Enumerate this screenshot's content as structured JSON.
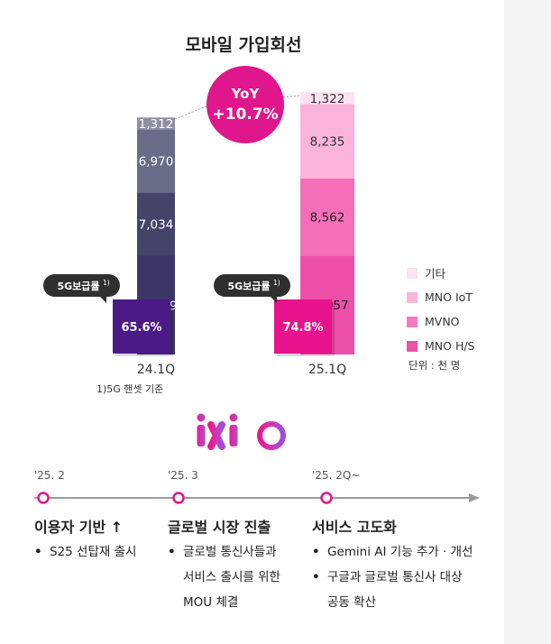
{
  "chart_data": {
    "type": "bar",
    "stacked": true,
    "title": "모바일 가입회선",
    "categories": [
      "24.1Q",
      "25.1Q"
    ],
    "series": [
      {
        "name": "MNO H/S",
        "values": [
          null,
          null
        ]
      },
      {
        "name": "MVNO",
        "values": [
          10949,
          10957
        ]
      },
      {
        "name": "MNO IoT",
        "values": [
          7034,
          8562
        ]
      },
      {
        "name": "기타",
        "values": [
          6970,
          8235
        ]
      },
      {
        "name": "",
        "values": [
          1312,
          1322
        ]
      }
    ],
    "segment_labels": [
      [
        "10,949",
        "7,034",
        "6,970",
        "1,312"
      ],
      [
        "10,957",
        "8,562",
        "8,235",
        "1,322"
      ]
    ],
    "5g_penetration": {
      "label": "5G보급률",
      "superscript": "1)",
      "values": [
        "65.6%",
        "74.8%"
      ]
    },
    "yoy": {
      "label": "YoY",
      "value": "+10.7%"
    },
    "legend_position": "right",
    "footnote": "1)5G 핸셋 기준",
    "unit": "단위 : 천 명",
    "colors": {
      "left": [
        "#3d3566",
        "#44446a",
        "#686c87",
        "#8d8fa3"
      ],
      "right": [
        "#ee4fa9",
        "#f46fb8",
        "#fab4d9",
        "#fde3f1"
      ],
      "pen_left": "#4a1a86",
      "pen_right": "#e8128c",
      "yoy": "#e0168c"
    },
    "legend": [
      {
        "label": "기타",
        "color": "#fbe3f1"
      },
      {
        "label": "MNO IoT",
        "color": "#fbb5d9"
      },
      {
        "label": "MVNO",
        "color": "#f57bbd"
      },
      {
        "label": "MNO H/S",
        "color": "#ee4fa9"
      }
    ]
  },
  "logo": {
    "text": "ixi O"
  },
  "timeline": {
    "milestones": [
      {
        "date": "'25. 2",
        "title": "이용자 기반 ↑",
        "items": [
          [
            "S25 선탑재 출시"
          ]
        ]
      },
      {
        "date": "'25. 3",
        "title": "글로벌 시장 진출",
        "items": [
          [
            "글로벌 통신사들과",
            "서비스 출시를 위한",
            "MOU 체결"
          ]
        ]
      },
      {
        "date": "'25. 2Q~",
        "title": "서비스 고도화",
        "items": [
          [
            "Gemini AI 기능 추가 · 개선"
          ],
          [
            "구글과 글로벌 통신사 대상",
            "공동 확산"
          ]
        ]
      }
    ]
  }
}
